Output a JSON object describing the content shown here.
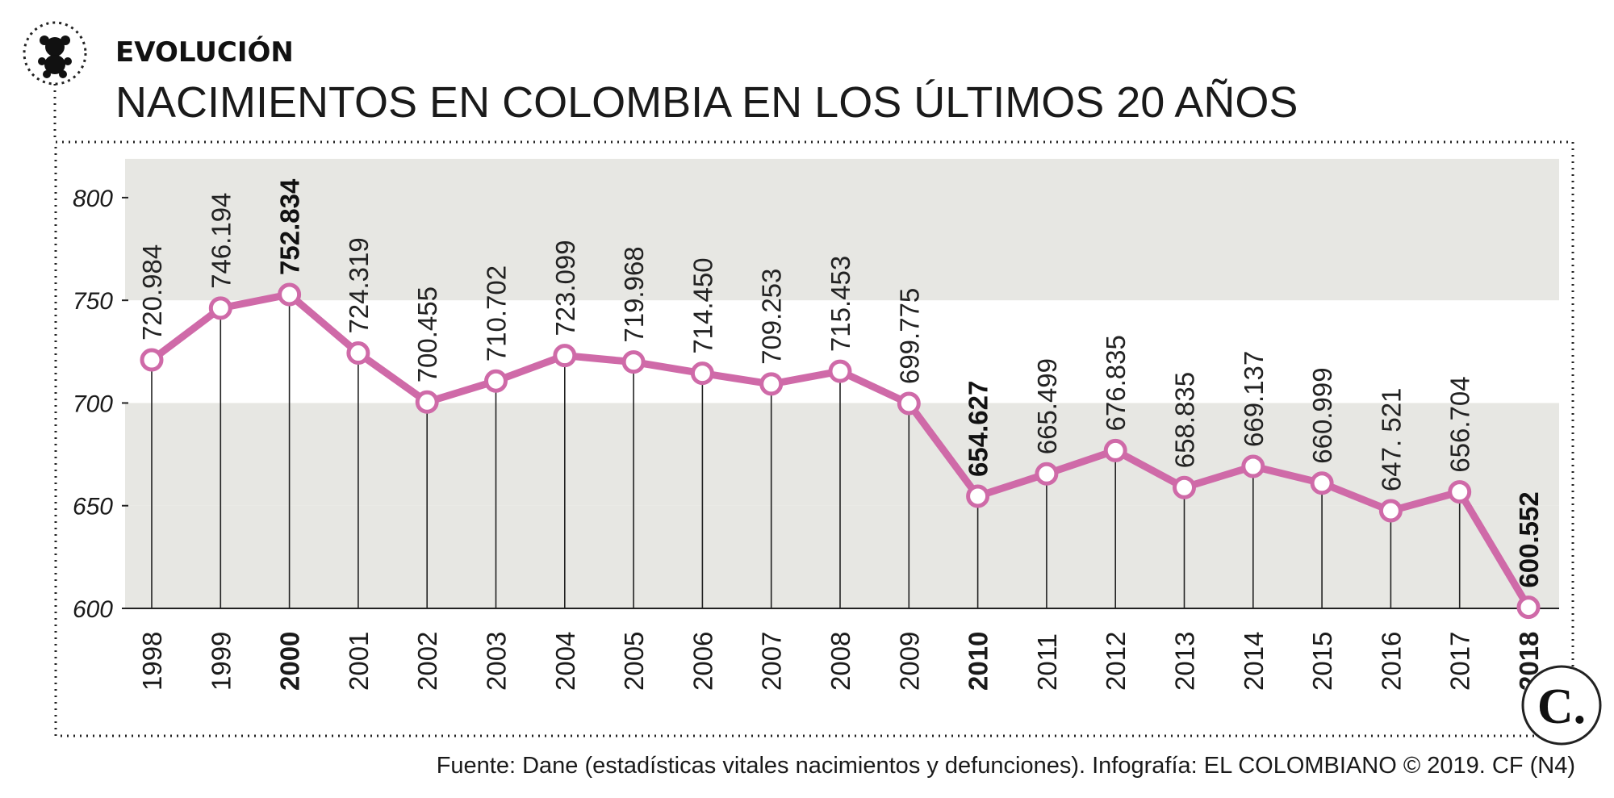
{
  "header": {
    "kicker": "EVOLUCIÓN",
    "title": "NACIMIENTOS EN COLOMBIA EN LOS ÚLTIMOS 20 AÑOS",
    "icon": "teddy-bear-icon"
  },
  "chart_data": {
    "type": "line",
    "title": "NACIMIENTOS EN COLOMBIA EN LOS ÚLTIMOS 20 AÑOS",
    "xlabel": "",
    "ylabel": "",
    "ylim": [
      600,
      820
    ],
    "yticks": [
      "800",
      "750",
      "700",
      "650",
      "600"
    ],
    "ytick_values": [
      800,
      750,
      700,
      650,
      600
    ],
    "bands": [
      [
        750,
        800
      ],
      [
        650,
        700
      ],
      [
        600,
        650
      ]
    ],
    "grid": false,
    "categories": [
      "1998",
      "1999",
      "2000",
      "2001",
      "2002",
      "2003",
      "2004",
      "2005",
      "2006",
      "2007",
      "2008",
      "2009",
      "2010",
      "2011",
      "2012",
      "2013",
      "2014",
      "2015",
      "2016",
      "2017",
      "2018"
    ],
    "values": [
      720.984,
      746.194,
      752.834,
      724.319,
      700.455,
      710.702,
      723.099,
      719.968,
      714.45,
      709.253,
      715.453,
      699.775,
      654.627,
      665.499,
      676.835,
      658.835,
      669.137,
      660.999,
      647.521,
      656.704,
      600.552
    ],
    "value_labels": [
      "720.984",
      "746.194",
      "752.834",
      "724.319",
      "700.455",
      "710.702",
      "723.099",
      "719.968",
      "714.450",
      "709.253",
      "715.453",
      "699.775",
      "654.627",
      "665.499",
      "676.835",
      "658.835",
      "669.137",
      "660.999",
      "647. 521",
      "656.704",
      "600.552"
    ],
    "highlighted": [
      "2000",
      "2010",
      "2018"
    ],
    "line_color": "#cf6aa8",
    "band_color": "#e7e7e3"
  },
  "footer": {
    "source": "Fuente: Dane (estadísticas vitales nacimientos y defunciones). Infografía: EL COLOMBIANO © 2019. CF (N4)",
    "logo_text": "C."
  }
}
